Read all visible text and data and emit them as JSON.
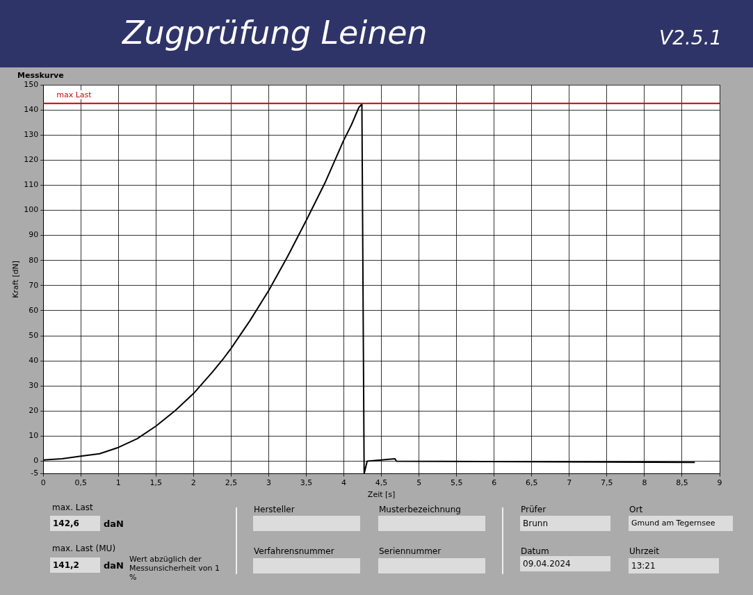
{
  "chart_data": {
    "type": "line",
    "title": "Zugprüfung Leinen",
    "subtitle": "V2.5.1",
    "xlabel": "Zeit [s]",
    "ylabel": "Kraft [dN]",
    "x": [
      0,
      0.25,
      0.5,
      0.75,
      1,
      1.25,
      1.5,
      1.75,
      2,
      2.25,
      2.4,
      2.5,
      2.75,
      3,
      3.25,
      3.5,
      3.75,
      4,
      4.1,
      4.2,
      4.24,
      4.27,
      4.31,
      4.68,
      4.7,
      8.67
    ],
    "series": [
      {
        "color": "#000000",
        "values": [
          0.5,
          1,
          2,
          3,
          5.5,
          9,
          14,
          20,
          27,
          35.5,
          41,
          45,
          56,
          68,
          81.5,
          96,
          111,
          128,
          134,
          141,
          142.3,
          -5,
          0,
          1,
          0,
          -0.5
        ]
      }
    ],
    "xlim": [
      0,
      9
    ],
    "xticks": [
      0,
      {
        "value": 0.5,
        "label": "0,5"
      },
      1,
      {
        "value": 1.5,
        "label": "1,5"
      },
      2,
      {
        "value": 2.5,
        "label": "2,5"
      },
      3,
      {
        "value": 3.5,
        "label": "3,5"
      },
      4,
      {
        "value": 4.5,
        "label": "4,5"
      },
      5,
      {
        "value": 5.5,
        "label": "5,5"
      },
      6,
      {
        "value": 6.5,
        "label": "6,5"
      },
      7,
      {
        "value": 7.5,
        "label": "7,5"
      },
      8,
      {
        "value": 8.5,
        "label": "8,5"
      },
      9
    ],
    "ylim": [
      -5,
      150
    ],
    "yticks": [
      -5,
      0,
      10,
      20,
      30,
      40,
      50,
      60,
      70,
      80,
      90,
      100,
      110,
      120,
      130,
      140,
      150
    ],
    "grid": true,
    "legend": false,
    "marker": "none",
    "line_style": "solid",
    "ref_lines": [
      {
        "axis": "y",
        "value": 142.6,
        "label": "max Last",
        "color": "#cc0000"
      }
    ],
    "annotations": [
      "Messkurve",
      "max. Last",
      "142,6",
      "daN",
      "max. Last (MU)",
      "141,2",
      "daN",
      "Wert abzüglich der Messunsicherheit von 1 %",
      "Hersteller",
      "Verfahrensnummer",
      "Musterbezeichnung",
      "Seriennummer",
      "Prüfer",
      "Brunn",
      "Datum",
      "09.04.2024",
      "Ort",
      "Gmund am Tegernsee",
      "Uhrzeit",
      "13:21"
    ]
  }
}
